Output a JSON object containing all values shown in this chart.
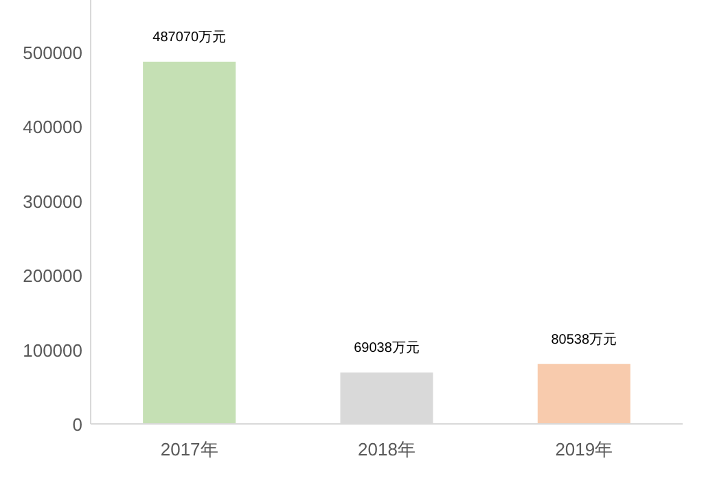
{
  "chart_data": {
    "type": "bar",
    "categories": [
      "2017年",
      "2018年",
      "2019年"
    ],
    "values": [
      487070,
      69038,
      80538
    ],
    "colors": [
      "#c5e0b4",
      "#d9d9d9",
      "#f8cbad"
    ],
    "value_labels": [
      "487070万元",
      "69038万元",
      "80538万元"
    ],
    "ylim": [
      0,
      570000
    ],
    "yticks": [
      0,
      100000,
      200000,
      300000,
      400000,
      500000
    ],
    "grid": false
  }
}
